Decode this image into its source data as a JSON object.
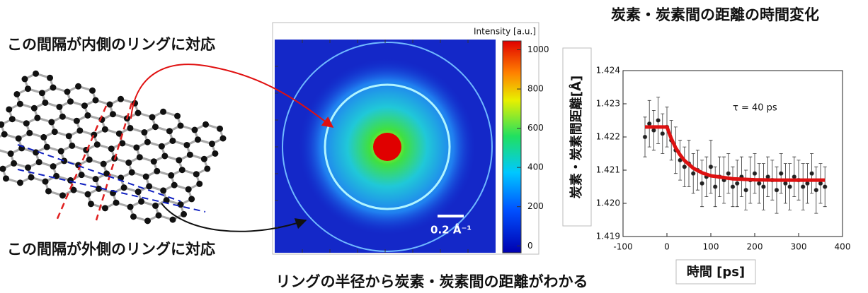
{
  "figure": {
    "inner_note": "この間隔が内側のリングに対応",
    "outer_note": "この間隔が外側のリングに対応",
    "caption": "リングの半径から炭素・炭素間の距離がわかる",
    "scale_bar": "0.2 Å⁻¹",
    "colorbar": {
      "label": "Intensity [a.u.]",
      "lim": [
        -35,
        1045
      ],
      "ticks": [
        0,
        200,
        400,
        600,
        800,
        1000
      ]
    }
  },
  "chart_data": {
    "type": "scatter",
    "title": "炭素・炭素間の距離の時間変化",
    "x_label": "時間 [ps]",
    "y_label": "炭素・炭素間距離[Å]",
    "annotation": "τ = 40 ps",
    "xlim": [
      -100,
      400
    ],
    "xticks": [
      -100,
      0,
      100,
      200,
      300,
      400
    ],
    "ylim": [
      1.419,
      1.424
    ],
    "yticks": [
      1.419,
      {
        "value": 1.42,
        "label": "1.420"
      },
      1.421,
      1.422,
      1.423,
      1.424
    ],
    "x": [
      -50,
      -40,
      -30,
      -20,
      -10,
      0,
      10,
      20,
      30,
      40,
      50,
      60,
      70,
      80,
      90,
      100,
      110,
      120,
      130,
      140,
      150,
      160,
      170,
      180,
      190,
      200,
      210,
      220,
      230,
      240,
      250,
      260,
      270,
      280,
      290,
      300,
      310,
      320,
      330,
      340,
      350,
      360
    ],
    "values": [
      1.422,
      1.4224,
      1.4222,
      1.4225,
      1.4221,
      1.4223,
      1.4219,
      1.4216,
      1.4213,
      1.4211,
      1.4212,
      1.4209,
      1.421,
      1.4206,
      1.4208,
      1.4211,
      1.4205,
      1.4208,
      1.4207,
      1.4209,
      1.4205,
      1.4206,
      1.4208,
      1.4204,
      1.4207,
      1.4209,
      1.4206,
      1.4205,
      1.4208,
      1.4207,
      1.4204,
      1.4209,
      1.4206,
      1.4205,
      1.4208,
      1.4207,
      1.4205,
      1.4206,
      1.4209,
      1.4204,
      1.4206,
      1.4205
    ],
    "errors": [
      0.0006,
      0.0007,
      0.0006,
      0.0007,
      0.0006,
      0.0006,
      0.0006,
      0.0007,
      0.0006,
      0.0006,
      0.0007,
      0.0006,
      0.0006,
      0.0007,
      0.0006,
      0.0008,
      0.0006,
      0.0006,
      0.0007,
      0.0006,
      0.0006,
      0.0007,
      0.0006,
      0.0006,
      0.0007,
      0.0006,
      0.0006,
      0.0007,
      0.0006,
      0.0006,
      0.0007,
      0.0006,
      0.0006,
      0.0007,
      0.0006,
      0.0006,
      0.0007,
      0.0006,
      0.0006,
      0.0007,
      0.0006,
      0.0006
    ],
    "color": "#222222",
    "fit": {
      "color": "#dd1111",
      "x": [
        -50,
        0,
        10,
        20,
        30,
        40,
        60,
        80,
        100,
        150,
        200,
        250,
        300,
        360
      ],
      "values": [
        1.4223,
        1.4223,
        1.42195,
        1.42167,
        1.42146,
        1.42129,
        1.42106,
        1.42092,
        1.42083,
        1.42074,
        1.42071,
        1.4207,
        1.4207,
        1.4207
      ]
    }
  }
}
